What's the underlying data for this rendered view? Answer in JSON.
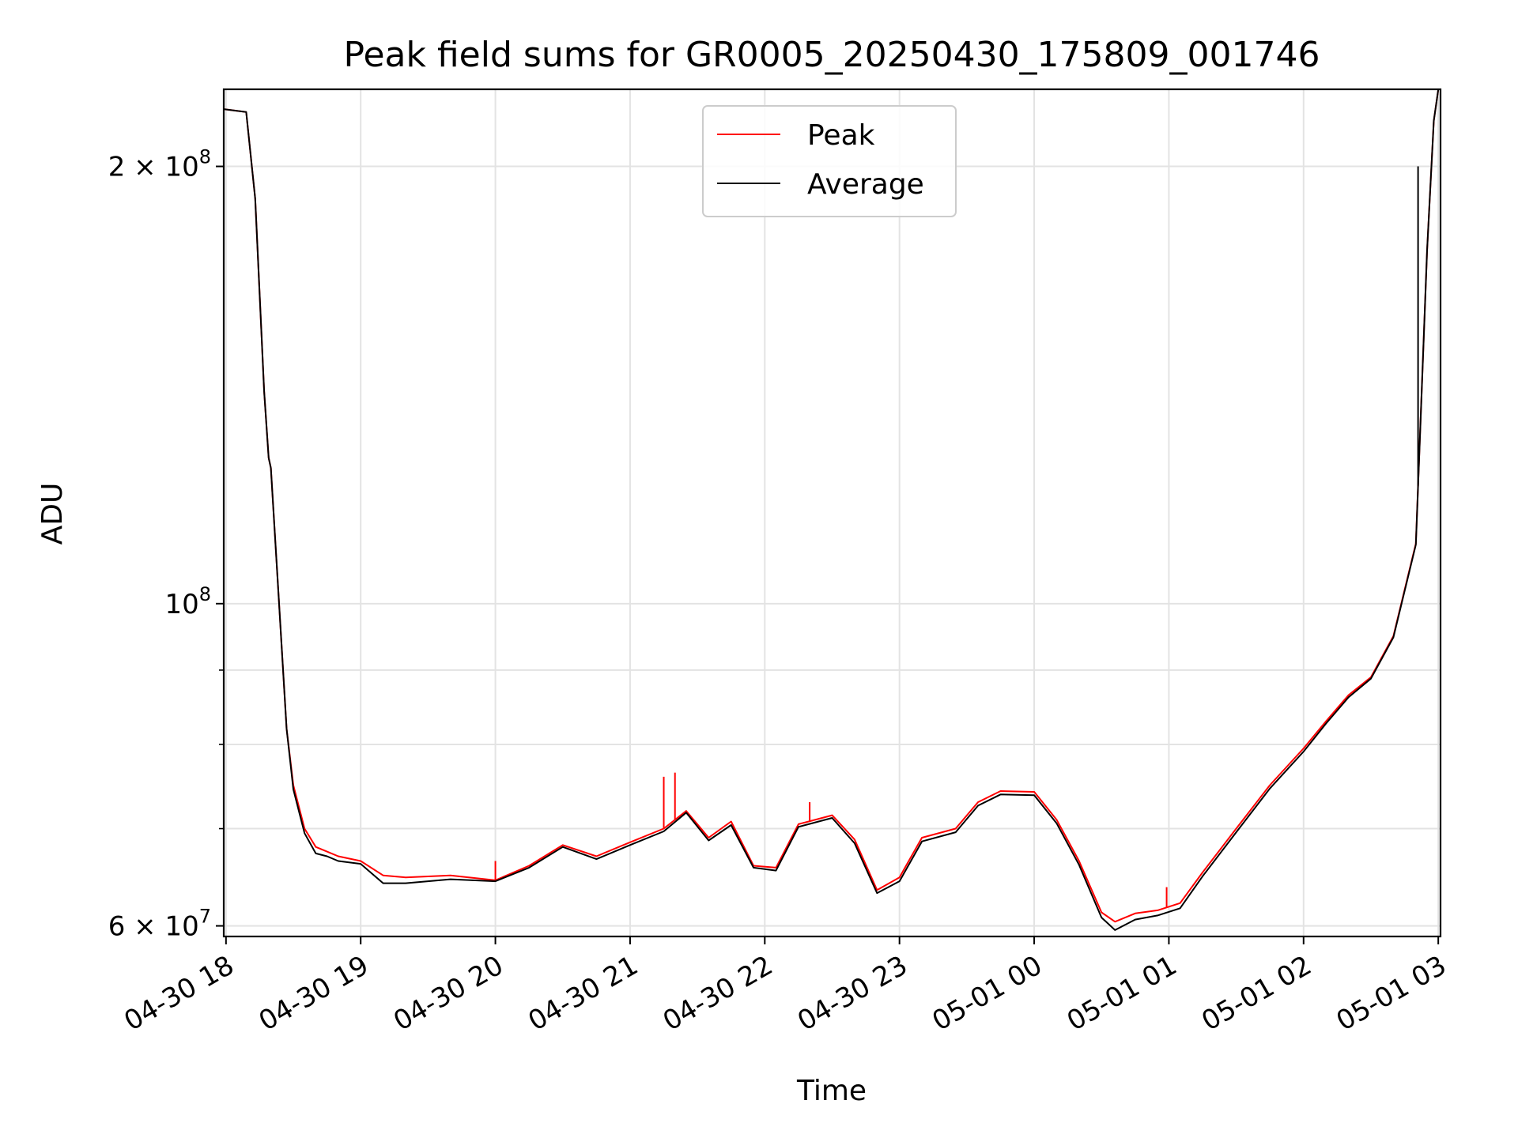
{
  "chart_data": {
    "type": "line",
    "title": "Peak field sums for GR0005_20250430_175809_001746",
    "xlabel": "Time",
    "ylabel": "ADU",
    "y_scale": "log",
    "ylim": [
      59000000,
      226000000
    ],
    "xlim": [
      "2025-04-30T17:59",
      "2025-05-01T03:01"
    ],
    "grid": true,
    "legend_position": "upper center",
    "x_tick_labels": [
      "04-30 18",
      "04-30 19",
      "04-30 20",
      "04-30 21",
      "04-30 22",
      "04-30 23",
      "05-01 00",
      "05-01 01",
      "05-01 02",
      "05-01 03"
    ],
    "x_ticks": [
      "2025-04-30T18:00",
      "2025-04-30T19:00",
      "2025-04-30T20:00",
      "2025-04-30T21:00",
      "2025-04-30T22:00",
      "2025-04-30T23:00",
      "2025-05-01T00:00",
      "2025-05-01T01:00",
      "2025-05-01T02:00",
      "2025-05-01T03:00"
    ],
    "y_major_ticks": [
      {
        "value": 60000000,
        "mantissa": "6",
        "exp": "7"
      },
      {
        "value": 100000000,
        "mantissa": "",
        "exp": "8"
      },
      {
        "value": 200000000,
        "mantissa": "2",
        "exp": "8"
      }
    ],
    "y_minor_ticks": [
      70000000,
      80000000,
      90000000
    ],
    "x": [
      "2025-04-30T17:59",
      "2025-04-30T18:09",
      "2025-04-30T18:13",
      "2025-04-30T18:17",
      "2025-04-30T18:19",
      "2025-04-30T18:20",
      "2025-04-30T18:23",
      "2025-04-30T18:27",
      "2025-04-30T18:30",
      "2025-04-30T18:35",
      "2025-04-30T18:40",
      "2025-04-30T18:45",
      "2025-04-30T18:50",
      "2025-04-30T19:00",
      "2025-04-30T19:10",
      "2025-04-30T19:20",
      "2025-04-30T19:40",
      "2025-04-30T20:00",
      "2025-04-30T20:15",
      "2025-04-30T20:30",
      "2025-04-30T20:45",
      "2025-04-30T21:00",
      "2025-04-30T21:15",
      "2025-04-30T21:25",
      "2025-04-30T21:35",
      "2025-04-30T21:45",
      "2025-04-30T21:55",
      "2025-04-30T22:05",
      "2025-04-30T22:15",
      "2025-04-30T22:30",
      "2025-04-30T22:40",
      "2025-04-30T22:50",
      "2025-04-30T23:00",
      "2025-04-30T23:10",
      "2025-04-30T23:25",
      "2025-04-30T23:35",
      "2025-04-30T23:45",
      "2025-05-01T00:00",
      "2025-05-01T00:10",
      "2025-05-01T00:20",
      "2025-05-01T00:30",
      "2025-05-01T00:36",
      "2025-05-01T00:45",
      "2025-05-01T00:55",
      "2025-05-01T01:05",
      "2025-05-01T01:15",
      "2025-05-01T01:30",
      "2025-05-01T01:45",
      "2025-05-01T02:00",
      "2025-05-01T02:10",
      "2025-05-01T02:20",
      "2025-05-01T02:30",
      "2025-05-01T02:40",
      "2025-05-01T02:50",
      "2025-05-01T02:55",
      "2025-05-01T02:58",
      "2025-05-01T03:00"
    ],
    "series": [
      {
        "name": "Peak",
        "color": "#ff0000",
        "values": [
          219000000,
          218000000,
          190000000,
          140000000,
          126000000,
          124000000,
          104000000,
          82000000,
          75000000,
          70000000,
          68000000,
          67500000,
          67000000,
          66500000,
          65000000,
          64800000,
          65000000,
          64500000,
          66000000,
          68200000,
          67000000,
          68500000,
          70000000,
          72000000,
          69000000,
          70800000,
          66000000,
          65800000,
          70500000,
          71500000,
          68800000,
          63500000,
          64800000,
          69000000,
          70000000,
          73000000,
          74300000,
          74200000,
          71000000,
          66500000,
          61300000,
          60400000,
          61200000,
          61500000,
          62200000,
          65300000,
          70000000,
          75000000,
          79500000,
          83000000,
          86500000,
          89000000,
          95000000,
          110000000,
          175000000,
          215000000,
          226000000
        ]
      },
      {
        "name": "Average",
        "color": "#000000",
        "values": [
          219000000,
          218000000,
          190000000,
          140000000,
          126000000,
          124000000,
          104000000,
          82000000,
          74500000,
          69500000,
          67300000,
          67000000,
          66500000,
          66200000,
          64200000,
          64200000,
          64600000,
          64400000,
          65800000,
          68000000,
          66700000,
          68200000,
          69700000,
          71800000,
          68700000,
          70400000,
          65800000,
          65500000,
          70200000,
          71200000,
          68400000,
          63200000,
          64400000,
          68600000,
          69600000,
          72600000,
          73900000,
          73800000,
          70600000,
          66100000,
          60800000,
          59600000,
          60600000,
          61000000,
          61700000,
          64900000,
          69600000,
          74600000,
          79100000,
          82700000,
          86200000,
          88800000,
          94800000,
          109800000,
          175000000,
          215000000,
          226000000
        ]
      }
    ],
    "spikes": [
      {
        "x": "2025-04-30T21:15",
        "series": "Peak",
        "value": 76000000
      },
      {
        "x": "2025-04-30T21:20",
        "series": "Peak",
        "value": 76500000
      },
      {
        "x": "2025-04-30T20:00",
        "series": "Peak",
        "value": 66500000
      },
      {
        "x": "2025-04-30T22:20",
        "series": "Peak",
        "value": 73000000
      },
      {
        "x": "2025-05-01T00:59",
        "series": "Peak",
        "value": 63800000
      },
      {
        "x": "2025-05-01T02:51",
        "series": "Average",
        "value": 200000000
      }
    ]
  }
}
